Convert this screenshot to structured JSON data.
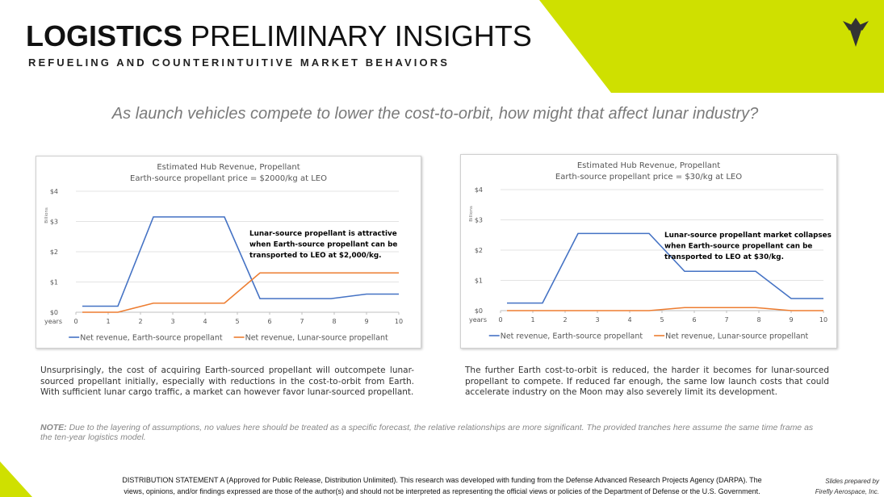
{
  "header": {
    "title_bold": "LOGISTICS",
    "title_regular": "PRELIMINARY INSIGHTS",
    "subtitle": "REFUELING AND COUNTERINTUITIVE MARKET BEHAVIORS"
  },
  "question": "As launch vehicles compete to lower the cost-to-orbit, how might that affect lunar industry?",
  "chart_data": [
    {
      "type": "line",
      "title": "Estimated Hub Revenue, Propellant",
      "subtitle": "Earth-source propellant price = $2000/kg at LEO",
      "ylabel": "Billions",
      "xlabel": "years",
      "x": [
        0.2,
        1.3,
        2.4,
        3.5,
        4.6,
        5.7,
        6.8,
        7.9,
        9,
        10
      ],
      "xlim": [
        0,
        10
      ],
      "xticks": [
        0,
        1,
        2,
        3,
        4,
        5,
        6,
        7,
        8,
        9,
        10
      ],
      "ylim": [
        0,
        4
      ],
      "yticks": [
        {
          "value": 0,
          "label": "$0"
        },
        {
          "value": 1,
          "label": "$1"
        },
        {
          "value": 2,
          "label": "$2"
        },
        {
          "value": 3,
          "label": "$3"
        },
        {
          "value": 4,
          "label": "$4"
        }
      ],
      "grid": true,
      "series": [
        {
          "name": "Net revenue, Earth-source propellant",
          "color": "#4472c4",
          "values": [
            0.2,
            0.2,
            3.15,
            3.15,
            3.15,
            0.45,
            0.45,
            0.45,
            0.6,
            0.6
          ]
        },
        {
          "name": "Net revenue, Lunar-source propellant",
          "color": "#ed7d31",
          "values": [
            0,
            0,
            0.3,
            0.3,
            0.3,
            1.3,
            1.3,
            1.3,
            1.3,
            1.3
          ]
        }
      ],
      "annotation": [
        "Lunar-source propellant is attractive",
        "when Earth-source propellant can be",
        "transported to LEO at $2,000/kg."
      ]
    },
    {
      "type": "line",
      "title": "Estimated Hub Revenue, Propellant",
      "subtitle": "Earth-source propellant price = $30/kg at LEO",
      "ylabel": "Billions",
      "xlabel": "years",
      "x": [
        0.2,
        1.3,
        2.4,
        3.5,
        4.6,
        5.7,
        6.8,
        7.9,
        9,
        10
      ],
      "xlim": [
        0,
        10
      ],
      "xticks": [
        0,
        1,
        2,
        3,
        4,
        5,
        6,
        7,
        8,
        9,
        10
      ],
      "ylim": [
        0,
        4
      ],
      "yticks": [
        {
          "value": 0,
          "label": "$0"
        },
        {
          "value": 1,
          "label": "$1"
        },
        {
          "value": 2,
          "label": "$2"
        },
        {
          "value": 3,
          "label": "$3"
        },
        {
          "value": 4,
          "label": "$4"
        }
      ],
      "grid": true,
      "series": [
        {
          "name": "Net revenue, Earth-source propellant",
          "color": "#4472c4",
          "values": [
            0.25,
            0.25,
            2.55,
            2.55,
            2.55,
            1.3,
            1.3,
            1.3,
            0.4,
            0.4
          ]
        },
        {
          "name": "Net revenue, Lunar-source propellant",
          "color": "#ed7d31",
          "values": [
            0,
            0,
            0,
            0,
            0,
            0.1,
            0.1,
            0.1,
            0,
            0
          ]
        }
      ],
      "annotation": [
        "Lunar-source propellant market collapses",
        "when Earth-source propellant can be",
        "transported to LEO at $30/kg."
      ]
    }
  ],
  "paragraphs": [
    "Unsurprisingly, the cost of acquiring Earth-sourced propellant will outcompete lunar-sourced propellant initially, especially with reductions in the cost-to-orbit from Earth. With sufficient lunar cargo traffic, a market can however favor lunar-sourced propellant.",
    "The further Earth cost-to-orbit is reduced, the harder it becomes for lunar-sourced propellant to compete. If reduced far enough, the same low launch costs that could accelerate industry on the Moon may also severely limit its development."
  ],
  "note": {
    "label": "NOTE:",
    "text": "Due to the layering of assumptions, no values here should be treated as a specific forecast, the relative relationships are more significant. The provided tranches here assume the same time frame as the ten-year logistics model."
  },
  "distribution": [
    "DISTRIBUTION STATEMENT A (Approved for Public Release, Distribution Unlimited). This research was developed with funding from the Defense Advanced Research Projects Agency (DARPA). The",
    "views, opinions, and/or findings expressed are those of the author(s) and should not be interpreted as representing the official views or policies of the Department of Defense or the U.S. Government."
  ],
  "credit": [
    "Slides prepared by",
    "Firefly Aerospace, Inc."
  ]
}
